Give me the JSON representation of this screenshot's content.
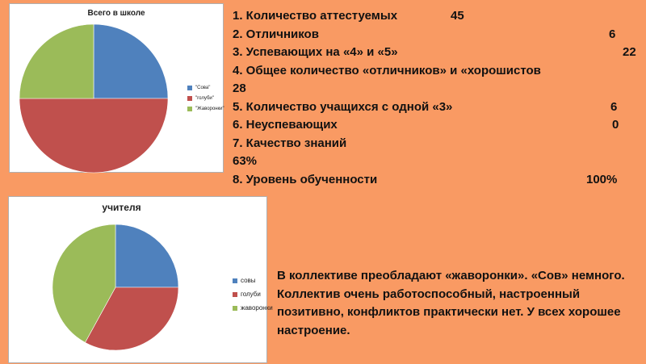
{
  "colors": {
    "background": "#f99a63",
    "blue": "#4f81bd",
    "red": "#c0504d",
    "green": "#9bbb59"
  },
  "chart_data": [
    {
      "type": "pie",
      "title": "Всего в школе",
      "legend_position": "right",
      "categories": [
        "\"Сова\"",
        "\"голуби\"",
        "\"Жаворонки\""
      ],
      "values": [
        25,
        50,
        25
      ]
    },
    {
      "type": "pie",
      "title": "учителя",
      "legend_position": "right",
      "categories": [
        "совы",
        "голуби",
        "жаворонки"
      ],
      "values": [
        25,
        33,
        42
      ]
    }
  ],
  "stats": [
    {
      "label": "1. Количество аттестуемых",
      "value": "45"
    },
    {
      "label": "2. Отличников",
      "value": "6"
    },
    {
      "label": "3. Успевающих на «4» и «5»",
      "value": "22"
    },
    {
      "label": "4. Общее количество «отличников» и «хорошистов",
      "value": ""
    },
    {
      "label": "28",
      "value": ""
    },
    {
      "label": "5. Количество учащихся с одной «3»",
      "value": "6"
    },
    {
      "label": "6. Неуспевающих",
      "value": "0"
    },
    {
      "label": "7. Качество знаний",
      "value": ""
    },
    {
      "label": "63%",
      "value": ""
    },
    {
      "label": "8. Уровень обученности",
      "value": "100%"
    }
  ],
  "summary": "В коллективе преобладают «жаворонки». «Сов» немного. Коллектив очень работоспособный, настроенный позитивно, конфликтов практически нет. У всех хорошее настроение."
}
